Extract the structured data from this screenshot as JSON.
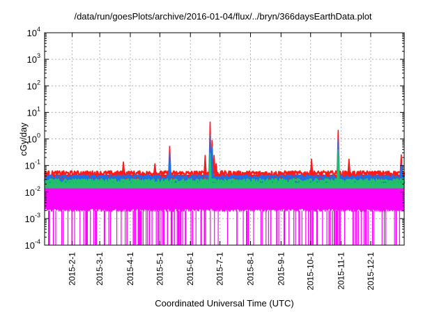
{
  "chart_data": {
    "type": "line",
    "title": "/data/run/goesPlots/archive/2016-01-04/flux/../bryn/366daysEarthData.plot",
    "xlabel": "Coordinated Universal Time (UTC)",
    "ylabel": "cGy/day",
    "yscale": "log",
    "ylim": [
      0.0001,
      10000
    ],
    "xlim": [
      "2015-01-04",
      "2016-01-04"
    ],
    "grid": true,
    "y_ticks": [
      {
        "base": "10",
        "exp": "-4",
        "value": 0.0001
      },
      {
        "base": "10",
        "exp": "-3",
        "value": 0.001
      },
      {
        "base": "10",
        "exp": "-2",
        "value": 0.01
      },
      {
        "base": "10",
        "exp": "-1",
        "value": 0.1
      },
      {
        "base": "10",
        "exp": "0",
        "value": 1
      },
      {
        "base": "10",
        "exp": "1",
        "value": 10
      },
      {
        "base": "10",
        "exp": "2",
        "value": 100
      },
      {
        "base": "10",
        "exp": "3",
        "value": 1000
      },
      {
        "base": "10",
        "exp": "4",
        "value": 10000
      }
    ],
    "x_tick_labels": [
      "2015-2-1",
      "2015-3-1",
      "2015-4-1",
      "2015-5-1",
      "2015-6-1",
      "2015-7-1",
      "2015-8-1",
      "2015-9-1",
      "2015-10-1",
      "2015-11-1",
      "2015-12-1"
    ],
    "series": [
      {
        "color": "#ff1a1a",
        "baseline": 0.05,
        "spikes": [
          {
            "x": "2015-03-25",
            "y": 0.14
          },
          {
            "x": "2015-04-26",
            "y": 0.12
          },
          {
            "x": "2015-05-11",
            "y": 0.55
          },
          {
            "x": "2015-06-16",
            "y": 0.25
          },
          {
            "x": "2015-06-21",
            "y": 4.5
          },
          {
            "x": "2015-06-23",
            "y": 0.9
          },
          {
            "x": "2015-06-25",
            "y": 0.25
          },
          {
            "x": "2015-06-27",
            "y": 0.12
          },
          {
            "x": "2015-10-02",
            "y": 0.18
          },
          {
            "x": "2015-10-29",
            "y": 2.2
          },
          {
            "x": "2015-11-09",
            "y": 0.18
          },
          {
            "x": "2016-01-01",
            "y": 0.26
          }
        ]
      },
      {
        "color": "#1f6fe5",
        "baseline": 0.035,
        "spikes": [
          {
            "x": "2015-05-11",
            "y": 0.3
          },
          {
            "x": "2015-06-21",
            "y": 1.5
          },
          {
            "x": "2015-06-23",
            "y": 0.5
          },
          {
            "x": "2015-10-29",
            "y": 1.0
          },
          {
            "x": "2016-01-01",
            "y": 0.12
          }
        ]
      },
      {
        "color": "#22c06a",
        "baseline": 0.025,
        "spikes": [
          {
            "x": "2015-06-21",
            "y": 0.3
          },
          {
            "x": "2015-10-29",
            "y": 0.4
          }
        ]
      },
      {
        "color": "#ff00ff",
        "baseline": 0.02,
        "min": 0.002,
        "dropouts_to": 0.0001,
        "spikes": [
          {
            "x": "2015-06-21",
            "y": 0.15
          },
          {
            "x": "2015-10-29",
            "y": 0.2
          }
        ]
      }
    ]
  }
}
